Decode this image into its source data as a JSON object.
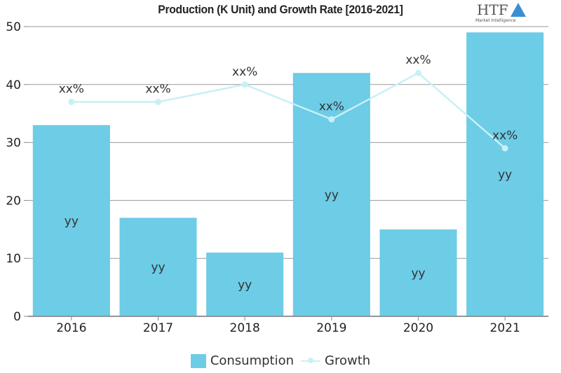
{
  "chart_data": {
    "type": "bar",
    "title": "Production (K Unit) and Growth Rate [2016-2021]",
    "categories": [
      "2016",
      "2017",
      "2018",
      "2019",
      "2020",
      "2021"
    ],
    "series": [
      {
        "name": "Consumption",
        "type": "bar",
        "values": [
          33,
          17,
          11,
          42,
          15,
          49
        ],
        "labels": [
          "yy",
          "yy",
          "yy",
          "yy",
          "yy",
          "yy"
        ],
        "color": "#6dcce6"
      },
      {
        "name": "Growth",
        "type": "line",
        "values": [
          37,
          37,
          40,
          34,
          42,
          29
        ],
        "labels": [
          "xx%",
          "xx%",
          "xx%",
          "xx%",
          "xx%",
          "xx%"
        ],
        "color": "#c8f0f6"
      }
    ],
    "yticks": [
      "0",
      "10",
      "20",
      "30",
      "40",
      "50"
    ],
    "ylim": [
      0,
      50
    ],
    "xlabel": "",
    "ylabel": "",
    "legend": "bottom-center"
  },
  "logo": {
    "text": "HTF",
    "subtext": "Market Intelligence"
  }
}
